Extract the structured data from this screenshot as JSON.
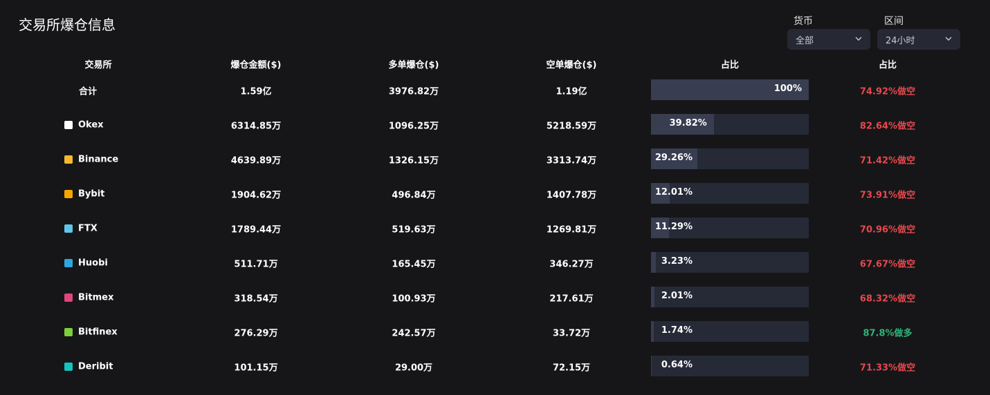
{
  "header": {
    "title": "交易所爆仓信息",
    "filters": [
      {
        "label": "货币",
        "value": "全部"
      },
      {
        "label": "区间",
        "value": "24小时"
      }
    ]
  },
  "table": {
    "columns": [
      "交易所",
      "爆仓金额($)",
      "多单爆仓($)",
      "空单爆仓($)",
      "占比",
      "占比"
    ],
    "rows": [
      {
        "exchange": "合计",
        "total": "1.59亿",
        "long": "3976.82万",
        "short": "1.19亿",
        "share": {
          "value": 100,
          "label": "100%"
        },
        "ratio": "74.92%做空",
        "ratio_color": "#e5484d"
      },
      {
        "exchange": "Okex",
        "total": "6314.85万",
        "long": "1096.25万",
        "short": "5218.59万",
        "share": {
          "value": 39.82,
          "label": "39.82%"
        },
        "ratio": "82.64%做空",
        "ratio_color": "#e5484d"
      },
      {
        "exchange": "Binance",
        "total": "4639.89万",
        "long": "1326.15万",
        "short": "3313.74万",
        "share": {
          "value": 29.26,
          "label": "29.26%"
        },
        "ratio": "71.42%做空",
        "ratio_color": "#e5484d"
      },
      {
        "exchange": "Bybit",
        "total": "1904.62万",
        "long": "496.84万",
        "short": "1407.78万",
        "share": {
          "value": 12.01,
          "label": "12.01%"
        },
        "ratio": "73.91%做空",
        "ratio_color": "#e5484d"
      },
      {
        "exchange": "FTX",
        "total": "1789.44万",
        "long": "519.63万",
        "short": "1269.81万",
        "share": {
          "value": 11.29,
          "label": "11.29%"
        },
        "ratio": "70.96%做空",
        "ratio_color": "#e5484d"
      },
      {
        "exchange": "Huobi",
        "total": "511.71万",
        "long": "165.45万",
        "short": "346.27万",
        "share": {
          "value": 3.23,
          "label": "3.23%"
        },
        "ratio": "67.67%做空",
        "ratio_color": "#e5484d"
      },
      {
        "exchange": "Bitmex",
        "total": "318.54万",
        "long": "100.93万",
        "short": "217.61万",
        "share": {
          "value": 2.01,
          "label": "2.01%"
        },
        "ratio": "68.32%做空",
        "ratio_color": "#e5484d"
      },
      {
        "exchange": "Bitfinex",
        "total": "276.29万",
        "long": "242.57万",
        "short": "33.72万",
        "share": {
          "value": 1.74,
          "label": "1.74%"
        },
        "ratio": "87.8%做多",
        "ratio_color": "#2fb57a"
      },
      {
        "exchange": "Deribit",
        "total": "101.15万",
        "long": "29.00万",
        "short": "72.15万",
        "share": {
          "value": 0.64,
          "label": "0.64%"
        },
        "ratio": "71.33%做空",
        "ratio_color": "#e5484d"
      }
    ]
  }
}
